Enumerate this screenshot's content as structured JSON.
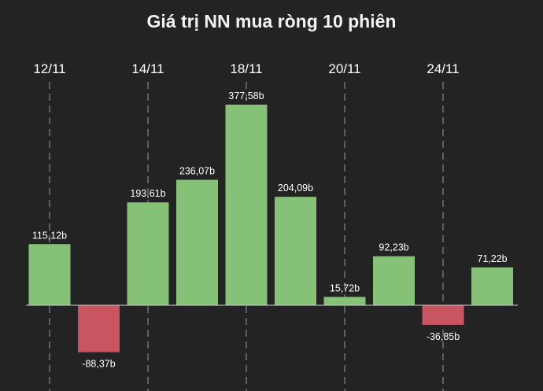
{
  "chart_data": {
    "type": "bar",
    "title": "Giá trị NN mua ròng 10 phiên",
    "categories": [
      "",
      "",
      "",
      "",
      "",
      "",
      "",
      "",
      "",
      ""
    ],
    "values": [
      115.12,
      -88.37,
      193.61,
      236.07,
      377.58,
      204.09,
      15.72,
      92.23,
      -36.85,
      71.22
    ],
    "data_labels": [
      "115,12b",
      "-88,37b",
      "193,61b",
      "236,07b",
      "377,58b",
      "204,09b",
      "15,72b",
      "92,23b",
      "-36,85b",
      "71,22b"
    ],
    "x_tick_labels": [
      {
        "index": 0,
        "label": "12/11"
      },
      {
        "index": 2,
        "label": "14/11"
      },
      {
        "index": 4,
        "label": "18/11"
      },
      {
        "index": 6,
        "label": "20/11"
      },
      {
        "index": 8,
        "label": "24/11"
      }
    ],
    "xlabel": "",
    "ylabel": "",
    "ylim": [
      -88.37,
      377.58
    ],
    "grid": "vertical dashed lines at labeled dates",
    "legend": "none",
    "colors": {
      "positive": "#85c177",
      "negative": "#c8555f",
      "background": "#232323",
      "text": "#ffffff",
      "grid": "#9a9a9a",
      "baseline": "#d0d0d0"
    }
  }
}
